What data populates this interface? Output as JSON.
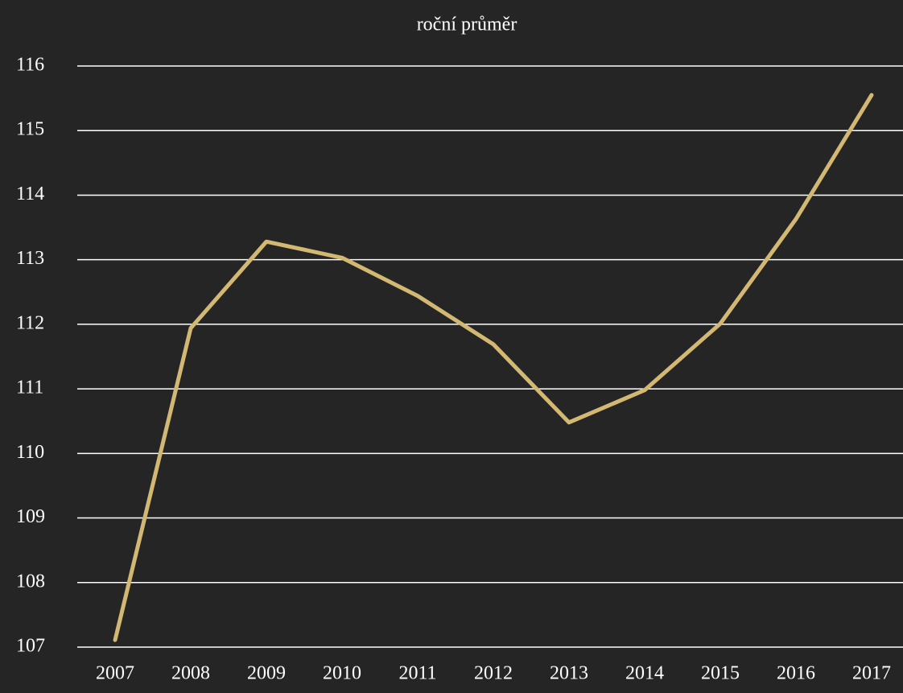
{
  "chart_data": {
    "type": "line",
    "title": "roční průměr",
    "categories": [
      "2007",
      "2008",
      "2009",
      "2010",
      "2011",
      "2012",
      "2013",
      "2014",
      "2015",
      "2016",
      "2017"
    ],
    "series": [
      {
        "name": "roční průměr",
        "color": "#d2b872",
        "values": [
          107.11,
          111.94,
          113.28,
          113.03,
          112.44,
          111.69,
          110.48,
          110.98,
          112.01,
          113.63,
          115.55
        ]
      }
    ],
    "ylim": [
      107,
      116
    ],
    "yticks": [
      107,
      108,
      109,
      110,
      111,
      112,
      113,
      114,
      115,
      116
    ],
    "grid": true
  }
}
